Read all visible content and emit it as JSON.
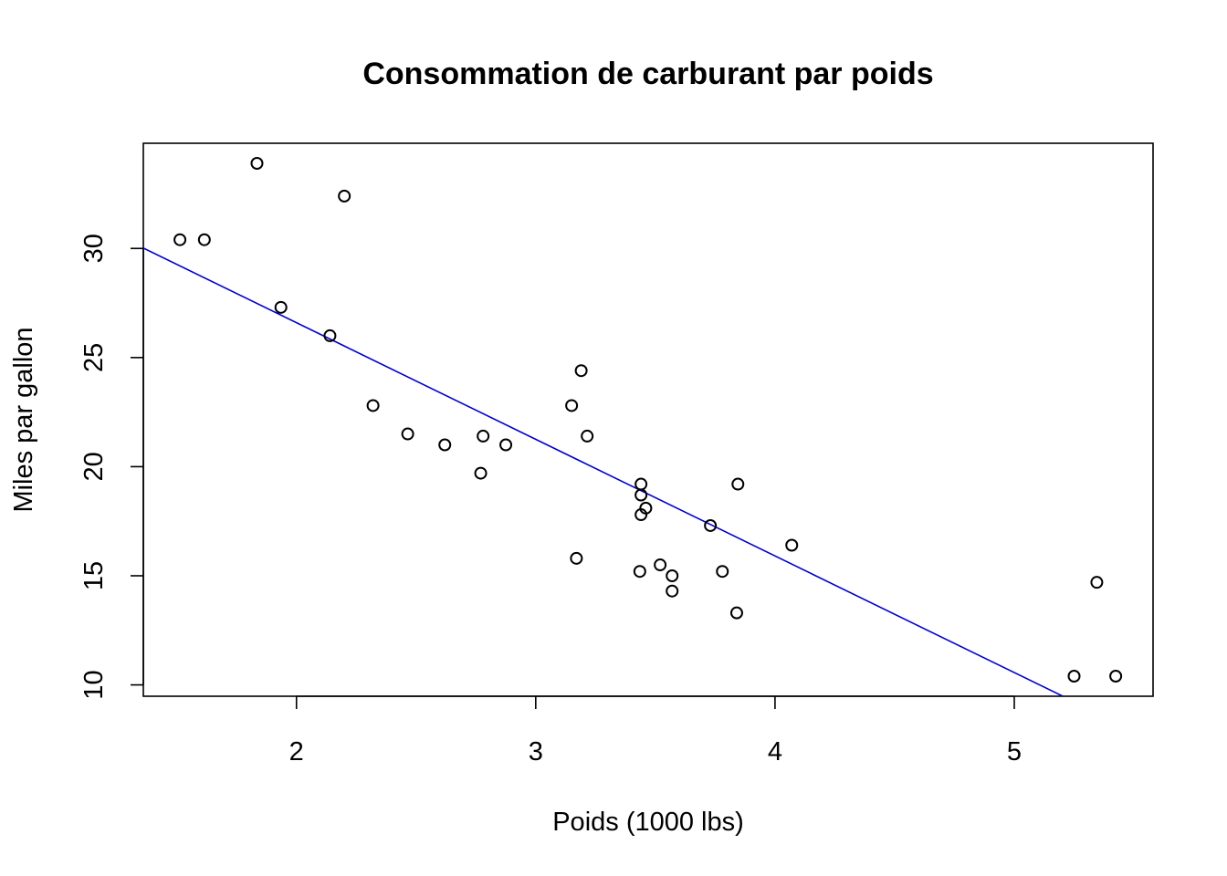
{
  "chart_data": {
    "type": "scatter",
    "title": "Consommation de carburant par poids",
    "xlabel": "Poids (1000 lbs)",
    "ylabel": "Miles par gallon",
    "xlim": [
      1.36,
      5.58
    ],
    "ylim": [
      9.48,
      34.82
    ],
    "x_ticks": [
      2,
      3,
      4,
      5
    ],
    "y_ticks": [
      10,
      15,
      20,
      25,
      30
    ],
    "grid": false,
    "legend": "none",
    "point_color": "#000000",
    "series": [
      {
        "x": [
          2.62,
          2.875,
          2.32,
          3.215,
          3.44,
          3.46,
          3.57,
          3.19,
          3.15,
          3.44,
          3.44,
          4.07,
          3.73,
          3.78,
          5.25,
          5.424,
          5.345,
          2.2,
          1.615,
          1.835,
          2.465,
          3.52,
          3.435,
          3.84,
          3.845,
          1.935,
          2.14,
          1.513,
          3.17,
          2.77,
          3.57,
          2.78
        ],
        "y": [
          21.0,
          21.0,
          22.8,
          21.4,
          18.7,
          18.1,
          14.3,
          24.4,
          22.8,
          19.2,
          17.8,
          16.4,
          17.3,
          15.2,
          10.4,
          10.4,
          14.7,
          32.4,
          30.4,
          33.9,
          21.5,
          15.5,
          15.2,
          13.3,
          19.2,
          27.3,
          26.0,
          30.4,
          15.8,
          19.7,
          15.0,
          21.4
        ]
      }
    ],
    "fit_line": {
      "intercept": 37.285,
      "slope": -5.344,
      "color": "#0000CD"
    }
  }
}
